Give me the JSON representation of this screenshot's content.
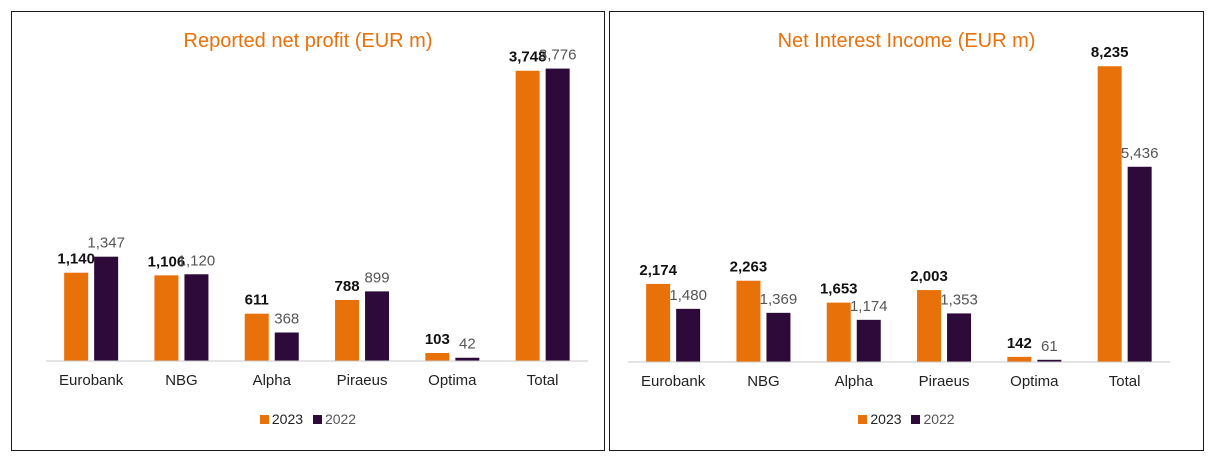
{
  "colors": {
    "y2023": "#E8710A",
    "y2022": "#2E0A3A",
    "title": "#E8710A"
  },
  "legend": {
    "y2023": "2023",
    "y2022": "2022"
  },
  "chart_data": [
    {
      "type": "bar",
      "title": "Reported net profit (EUR m)",
      "categories": [
        "Eurobank",
        "NBG",
        "Alpha",
        "Piraeus",
        "Optima",
        "Total"
      ],
      "series": [
        {
          "name": "2023",
          "values": [
            1140,
            1106,
            611,
            788,
            103,
            3748
          ],
          "labels": [
            "1,140",
            "1,106",
            "611",
            "788",
            "103",
            "3,748"
          ]
        },
        {
          "name": "2022",
          "values": [
            1347,
            1120,
            368,
            899,
            42,
            3776
          ],
          "labels": [
            "1,347",
            "1,120",
            "368",
            "899",
            "42",
            "3,776"
          ]
        }
      ],
      "ylim": [
        0,
        4300
      ],
      "grid": false,
      "legend_position": "bottom"
    },
    {
      "type": "bar",
      "title": "Net Interest Income (EUR m)",
      "categories": [
        "Eurobank",
        "NBG",
        "Alpha",
        "Piraeus",
        "Optima",
        "Total"
      ],
      "series": [
        {
          "name": "2023",
          "values": [
            2174,
            2263,
            1653,
            2003,
            142,
            8235
          ],
          "labels": [
            "2,174",
            "2,263",
            "1,653",
            "2,003",
            "142",
            "8,235"
          ]
        },
        {
          "name": "2022",
          "values": [
            1480,
            1369,
            1174,
            1353,
            61,
            5436
          ],
          "labels": [
            "1,480",
            "1,369",
            "1,174",
            "1,353",
            "61",
            "5,436"
          ]
        }
      ],
      "ylim": [
        0,
        9300
      ],
      "grid": false,
      "legend_position": "bottom"
    }
  ]
}
